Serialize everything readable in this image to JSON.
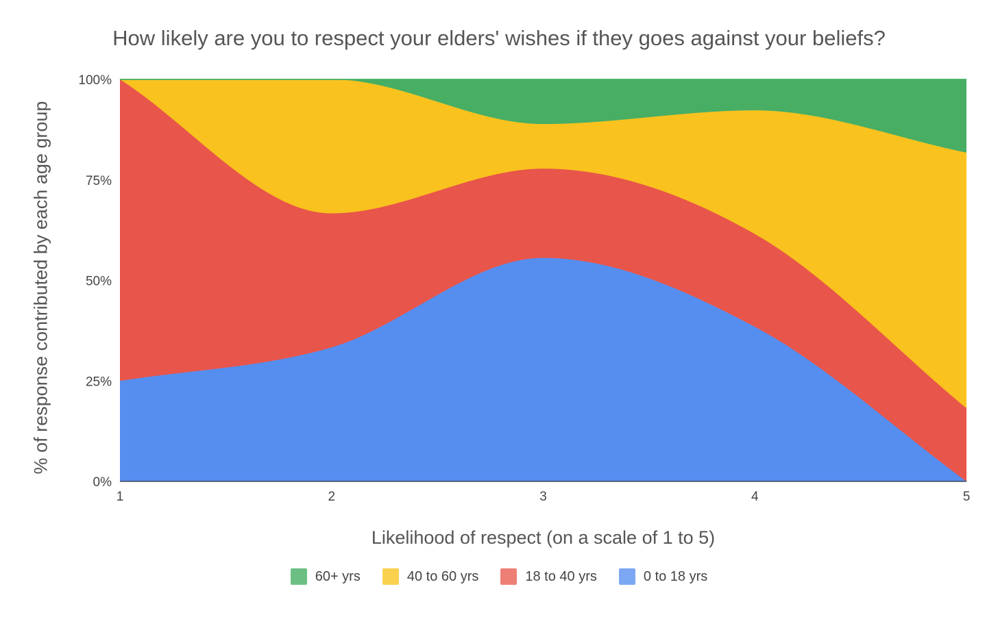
{
  "chart_data": {
    "type": "area",
    "stacked": "percent",
    "title": "How likely are you to respect your elders' wishes if they goes against your beliefs?",
    "xlabel": "Likelihood of respect (on a scale of 1 to 5)",
    "ylabel": "% of response contributed by each age group",
    "x": [
      1,
      2,
      3,
      4,
      5
    ],
    "x_tick_labels": [
      "1",
      "2",
      "3",
      "4",
      "5"
    ],
    "y_tick_labels": [
      "0%",
      "25%",
      "50%",
      "75%",
      "100%"
    ],
    "ylim": [
      0,
      100
    ],
    "grid": false,
    "legend_position": "bottom",
    "series": [
      {
        "name": "0 to 18 yrs",
        "color": "#558EEF",
        "legend_color": "#7BA7F3",
        "values": [
          25,
          33.3,
          55.6,
          38.5,
          0
        ]
      },
      {
        "name": "18 to 40 yrs",
        "color": "#E8554A",
        "legend_color": "#EE7F76",
        "values": [
          75,
          33.3,
          22.2,
          23.1,
          18.2
        ]
      },
      {
        "name": "40 to 60 yrs",
        "color": "#F9C21E",
        "legend_color": "#FAD14E",
        "values": [
          0,
          33.3,
          11.1,
          30.8,
          63.6
        ]
      },
      {
        "name": "60+ yrs",
        "color": "#47AE64",
        "legend_color": "#6CBF83",
        "values": [
          0,
          0,
          11.1,
          7.7,
          18.2
        ]
      }
    ],
    "legend_order": [
      "60+ yrs",
      "40 to 60 yrs",
      "18 to 40 yrs",
      "0 to 18 yrs"
    ]
  }
}
